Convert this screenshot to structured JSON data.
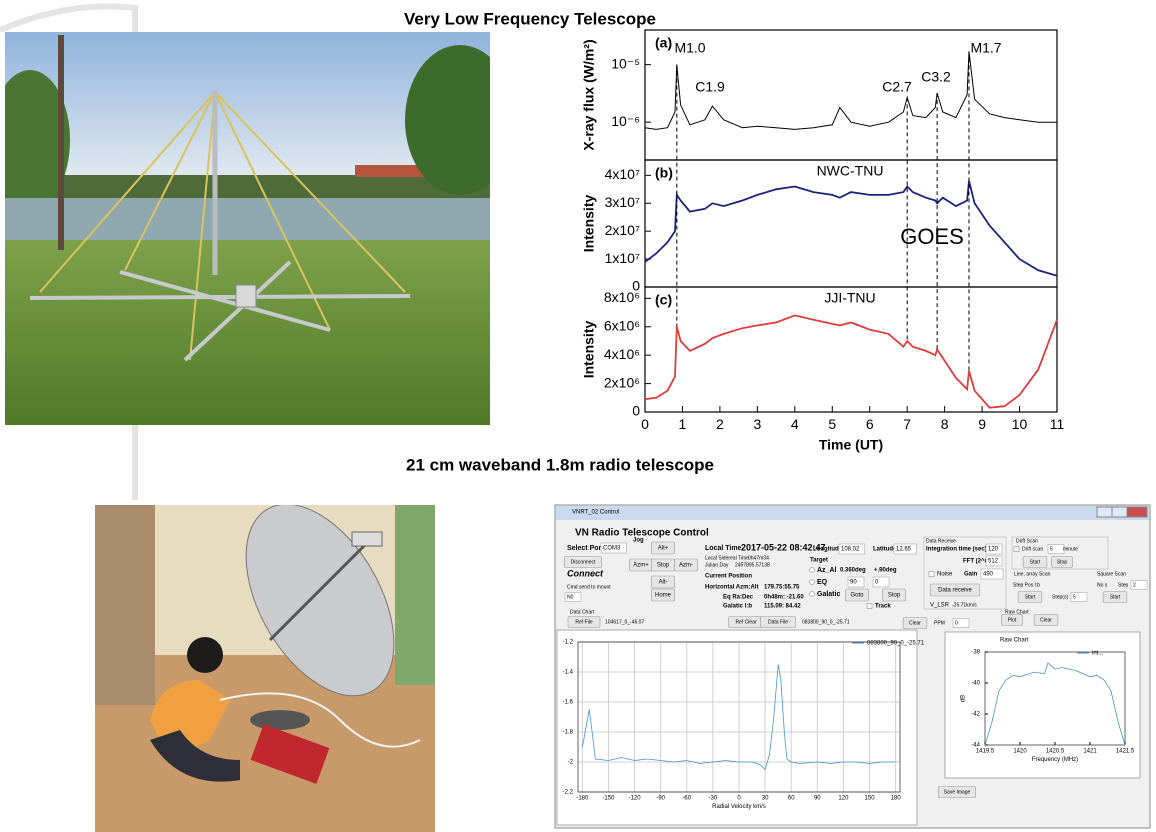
{
  "header": {
    "title": "Very Low Frequency Telescope",
    "subtitle": "21 cm waveband 1.8m radio telescope"
  },
  "chart_data": [
    {
      "type": "line",
      "panel_label": "(a)",
      "ylabel": "X-ray flux (W/m²)",
      "log": true,
      "x": [
        0,
        0.3,
        0.6,
        0.8,
        0.85,
        0.95,
        1.2,
        1.6,
        1.8,
        2.1,
        2.6,
        3.0,
        3.5,
        4.0,
        4.5,
        5.0,
        5.2,
        5.5,
        6.0,
        6.5,
        6.9,
        7.0,
        7.15,
        7.5,
        7.75,
        7.8,
        7.95,
        8.3,
        8.6,
        8.65,
        8.8,
        9.2,
        9.6,
        10.0,
        10.5,
        11.0
      ],
      "series": [
        {
          "color": "#000000",
          "values": [
            8e-07,
            7.5e-07,
            8e-07,
            1.5e-06,
            1e-05,
            2e-06,
            9e-07,
            1.1e-06,
            1.9e-06,
            1.1e-06,
            8e-07,
            8.5e-07,
            8e-07,
            7.5e-07,
            8e-07,
            9e-07,
            1.8e-06,
            1e-06,
            8.5e-07,
            1e-06,
            1.5e-06,
            2.7e-06,
            1.3e-06,
            1.2e-06,
            1.8e-06,
            3.2e-06,
            1.5e-06,
            1.2e-06,
            3e-06,
            1.7e-05,
            2.5e-06,
            1.4e-06,
            1.2e-06,
            1.1e-06,
            1e-06,
            1e-06
          ]
        }
      ],
      "xlim": [
        0,
        11
      ],
      "ylim": [
        2.2e-07,
        4e-05
      ],
      "yticks": [
        {
          "value": 1e-05,
          "label": "10⁻⁵"
        },
        {
          "value": 1e-06,
          "label": "10⁻⁶"
        }
      ],
      "annotations": [
        "M1.0",
        "C1.9",
        "C2.7",
        "C3.2",
        "M1.7"
      ],
      "flare_x": [
        0.85,
        7.0,
        7.8,
        8.65
      ]
    },
    {
      "type": "line",
      "panel_label": "(b)",
      "ylabel": "Intensity",
      "watermark": "GOES",
      "x": [
        0,
        0.3,
        0.6,
        0.8,
        0.85,
        0.95,
        1.2,
        1.6,
        1.8,
        2.1,
        2.6,
        3.0,
        3.5,
        4.0,
        4.5,
        5.0,
        5.2,
        5.5,
        6.0,
        6.5,
        6.9,
        7.0,
        7.15,
        7.5,
        7.75,
        7.8,
        7.95,
        8.3,
        8.6,
        8.65,
        8.8,
        9.2,
        9.6,
        10.0,
        10.5,
        11.0
      ],
      "series": [
        {
          "name": "NWC-TNU",
          "color": "#1a237e",
          "values": [
            9000000.0,
            12000000.0,
            16000000.0,
            20000000.0,
            33000000.0,
            31000000.0,
            27000000.0,
            28000000.0,
            30000000.0,
            29000000.0,
            31000000.0,
            33000000.0,
            35000000.0,
            36000000.0,
            34000000.0,
            33000000.0,
            32000000.0,
            34000000.0,
            33000000.0,
            33000000.0,
            34000000.0,
            36000000.0,
            34000000.0,
            32000000.0,
            31000000.0,
            30000000.0,
            32000000.0,
            29000000.0,
            31000000.0,
            38000000.0,
            30000000.0,
            22000000.0,
            16000000.0,
            10000000.0,
            6000000.0,
            4000000.0
          ]
        }
      ],
      "xlim": [
        0,
        11
      ],
      "ylim": [
        0,
        45500000.0
      ],
      "yticks": [
        0,
        {
          "value": 10000000,
          "label": "1x10⁷"
        },
        {
          "value": 20000000,
          "label": "2x10⁷"
        },
        {
          "value": 30000000,
          "label": "3x10⁷"
        },
        {
          "value": 40000000,
          "label": "4x10⁷"
        }
      ]
    },
    {
      "type": "line",
      "panel_label": "(c)",
      "ylabel": "Intensity",
      "xlabel": "Time (UT)",
      "x": [
        0,
        0.3,
        0.6,
        0.8,
        0.85,
        0.95,
        1.2,
        1.6,
        1.8,
        2.1,
        2.6,
        3.0,
        3.5,
        4.0,
        4.5,
        5.0,
        5.2,
        5.5,
        6.0,
        6.5,
        6.9,
        7.0,
        7.15,
        7.5,
        7.75,
        7.8,
        7.95,
        8.3,
        8.6,
        8.65,
        8.8,
        9.2,
        9.6,
        10.0,
        10.5,
        11.0
      ],
      "series": [
        {
          "name": "JJI-TNU",
          "color": "#e03c3c",
          "values": [
            900000.0,
            1000000.0,
            1500000.0,
            2500000.0,
            6000000.0,
            5000000.0,
            4300000.0,
            4800000.0,
            5200000.0,
            5500000.0,
            5900000.0,
            6100000.0,
            6300000.0,
            6800000.0,
            6500000.0,
            6200000.0,
            6100000.0,
            6300000.0,
            5800000.0,
            5500000.0,
            4600000.0,
            5000000.0,
            4600000.0,
            4300000.0,
            4000000.0,
            4400000.0,
            3800000.0,
            2400000.0,
            1600000.0,
            2900000.0,
            1500000.0,
            300000.0,
            400000.0,
            1200000.0,
            3000000.0,
            6500000.0
          ]
        }
      ],
      "xlim": [
        0,
        11
      ],
      "ylim": [
        0,
        8800000.0
      ],
      "xticks": [
        0,
        1,
        2,
        3,
        4,
        5,
        6,
        7,
        8,
        9,
        10,
        11
      ],
      "yticks": [
        0,
        {
          "value": 2000000,
          "label": "2x10⁶"
        },
        {
          "value": 4000000,
          "label": "4x10⁶"
        },
        {
          "value": 6000000,
          "label": "6x10⁶"
        },
        {
          "value": 8000000,
          "label": "8x10⁶"
        }
      ]
    },
    {
      "type": "line",
      "xlabel": "Radial Velocity km/s",
      "grid": true,
      "legend": "upper right",
      "x": [
        -180,
        -172,
        -165,
        -150,
        -135,
        -120,
        -105,
        -90,
        -75,
        -60,
        -45,
        -30,
        -15,
        0,
        15,
        25,
        30,
        35,
        40,
        45,
        48,
        52,
        55,
        60,
        70,
        90,
        105,
        120,
        135,
        150,
        165,
        180
      ],
      "series": [
        {
          "name": "083800_90_0_-25.71",
          "color": "#4a90d9",
          "values": [
            -1.9,
            -1.65,
            -1.98,
            -1.99,
            -1.97,
            -1.99,
            -1.98,
            -1.99,
            -2.0,
            -1.99,
            -2.01,
            -2.0,
            -1.99,
            -2.0,
            -2.0,
            -2.02,
            -2.05,
            -1.95,
            -1.7,
            -1.35,
            -1.45,
            -1.8,
            -1.98,
            -2.0,
            -2.01,
            -2.0,
            -2.01,
            -2.0,
            -2.0,
            -2.01,
            -2.0,
            -2.0
          ]
        }
      ],
      "xlim": [
        -185,
        185
      ],
      "ylim": [
        -2.2,
        -1.2
      ],
      "xticks": [
        -180,
        -150,
        -120,
        -90,
        -60,
        -30,
        0,
        30,
        60,
        90,
        120,
        150,
        180
      ],
      "yticks": [
        -2.2,
        -2,
        -1.8,
        -1.6,
        -1.4,
        -1.2
      ]
    },
    {
      "type": "line",
      "title": "Raw Chart",
      "xlabel": "Frequency (MHz)",
      "ylabel": "dB",
      "legend": "upper right",
      "x": [
        1419.5,
        1419.6,
        1419.7,
        1419.8,
        1419.9,
        1420.0,
        1420.2,
        1420.35,
        1420.4,
        1420.5,
        1420.6,
        1420.8,
        1421.0,
        1421.1,
        1421.2,
        1421.3,
        1421.4,
        1421.5
      ],
      "series": [
        {
          "name": "int...",
          "color": "#4a90d9",
          "values": [
            -44,
            -42.5,
            -40.5,
            -39.8,
            -39.5,
            -39.6,
            -39.3,
            -39.4,
            -38.7,
            -39.1,
            -39.0,
            -39.2,
            -39.6,
            -39.5,
            -39.8,
            -40.5,
            -42.5,
            -44
          ]
        }
      ],
      "xlim": [
        1419.5,
        1421.5
      ],
      "ylim": [
        -44,
        -38
      ],
      "xticks": [
        1419.5,
        1420,
        1420.5,
        1421,
        1421.5
      ],
      "yticks": [
        -44,
        -42,
        -40,
        -38
      ]
    }
  ],
  "software": {
    "labels": [
      "VNRT_02 Control",
      "VN Radio Telescope Control",
      "Select Port",
      "COM3",
      "Disconnect",
      "Jog",
      "Alt+",
      "Azm+",
      "Stop",
      "Azm-",
      "Alt-",
      "Home",
      "Connect",
      "Cmd send to mount",
      "N0",
      "Local Time",
      "2017-05-22 08:42:47",
      "Local Sidereal Time",
      "0h47m34",
      "Julian Day",
      "2457895.57138",
      "Current Position",
      "Horizontal Azm:Alt",
      "179.75:55.75",
      "Eq Ra:Dec",
      "0h48m: -21.60",
      "Galatic l:b",
      "115.09: 84.42",
      "Longitude",
      "108.02",
      "Latitude",
      "12.65",
      "Target",
      "Az_Al",
      "0.360deg",
      "+.90deg",
      "EQ",
      "90",
      "0",
      "Galatic",
      "Goto",
      "Stop",
      "Track",
      "Data Receive",
      "Integration time (sec)",
      "120",
      "FFT (2^n)",
      "512",
      "Noise",
      "Gain",
      "490",
      "Data receive",
      "V_LSR",
      "-25.71km/s",
      "Drift Scan",
      "Drift scan",
      "5",
      "minute",
      "Start",
      "Stop",
      "Line, array Scan",
      "Step Pos l:b",
      "Start",
      "Step(s)",
      "5",
      "Square Scan",
      "No s",
      "Step",
      "2",
      "Start",
      "Raw Chart",
      "Plot",
      "Clear",
      "Data Chart",
      "Ref File",
      "104617_0_-46.07",
      "Ref Clear",
      "Data File",
      "083800_90_0_-25.71",
      "Clear",
      "PPM",
      "0",
      "Save Image"
    ]
  }
}
